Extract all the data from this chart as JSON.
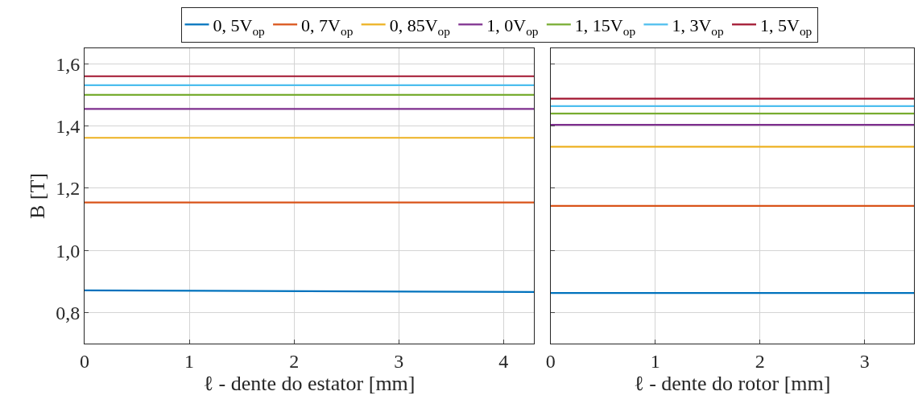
{
  "chart_data": [
    {
      "type": "line",
      "xlabel": "ℓ - dente do estator [mm]",
      "ylabel": "B [T]",
      "xlim": [
        0,
        4.29
      ],
      "xticks": [
        0,
        1,
        2,
        3,
        4
      ],
      "ylim": [
        0.7,
        1.65
      ],
      "yticks": [
        {
          "value": 0.8,
          "label": "0,8"
        },
        {
          "value": 1.0,
          "label": "1,0"
        },
        {
          "value": 1.2,
          "label": "1,2"
        },
        {
          "value": 1.4,
          "label": "1,4"
        },
        {
          "value": 1.6,
          "label": "1,6"
        }
      ],
      "grid": true,
      "legend": "top",
      "x": [
        0,
        4.29
      ],
      "series": [
        {
          "name": "0, 5V$_{op}$",
          "color": "#0072bd",
          "values": [
            0.871,
            0.866
          ]
        },
        {
          "name": "0, 7V$_{op}$",
          "color": "#d95319",
          "values": [
            1.154,
            1.154
          ]
        },
        {
          "name": "0, 85V$_{op}$",
          "color": "#edb120",
          "values": [
            1.362,
            1.362
          ]
        },
        {
          "name": "1, 0V$_{op}$",
          "color": "#7e2f8e",
          "values": [
            1.455,
            1.455
          ]
        },
        {
          "name": "1, 15V$_{op}$",
          "color": "#77ac30",
          "values": [
            1.5,
            1.5
          ]
        },
        {
          "name": "1, 3V$_{op}$",
          "color": "#4dbeee",
          "values": [
            1.531,
            1.531
          ]
        },
        {
          "name": "1, 5V$_{op}$",
          "color": "#a2142f",
          "values": [
            1.56,
            1.56
          ]
        }
      ]
    },
    {
      "type": "line",
      "xlabel": "ℓ - dente do rotor [mm]",
      "xlim": [
        0,
        3.47
      ],
      "xticks": [
        0,
        1,
        2,
        3
      ],
      "ylim": [
        0.7,
        1.65
      ],
      "yticks": [
        {
          "value": 0.8,
          "label": null
        },
        {
          "value": 1.0,
          "label": null
        },
        {
          "value": 1.2,
          "label": null
        },
        {
          "value": 1.4,
          "label": null
        },
        {
          "value": 1.6,
          "label": null
        }
      ],
      "grid": true,
      "tick_labels": "x",
      "x": [
        0,
        3.47
      ],
      "series": [
        {
          "color": "#0072bd",
          "values": [
            0.863,
            0.863
          ]
        },
        {
          "color": "#d95319",
          "values": [
            1.143,
            1.143
          ]
        },
        {
          "color": "#edb120",
          "values": [
            1.333,
            1.333
          ]
        },
        {
          "color": "#7e2f8e",
          "values": [
            1.404,
            1.404
          ]
        },
        {
          "color": "#77ac30",
          "values": [
            1.44,
            1.44
          ]
        },
        {
          "color": "#4dbeee",
          "values": [
            1.464,
            1.464
          ]
        },
        {
          "color": "#a2142f",
          "values": [
            1.488,
            1.488
          ]
        }
      ]
    }
  ]
}
